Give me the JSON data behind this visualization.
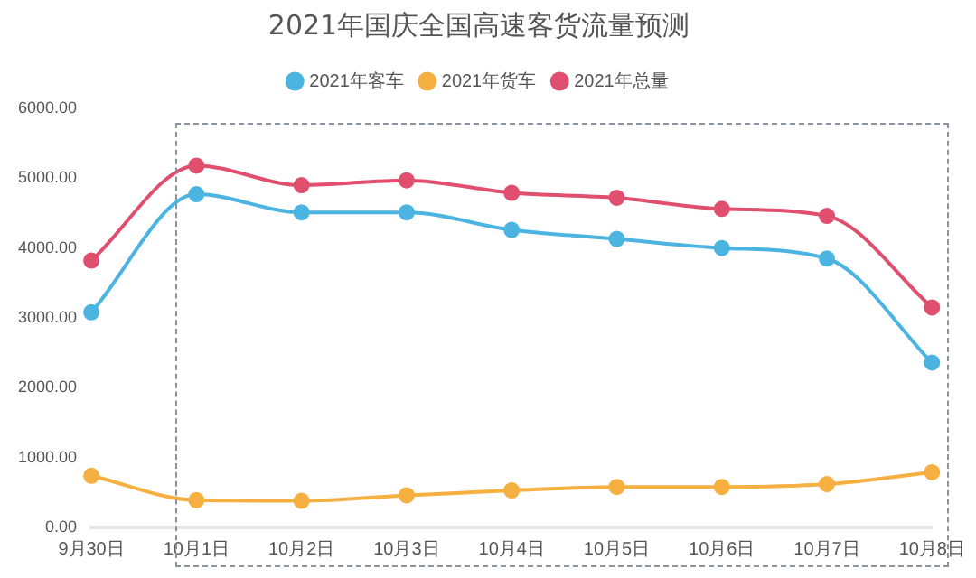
{
  "chart_data": {
    "type": "line",
    "title": "2021年国庆全国高速客货流量预测",
    "categories": [
      "9月30日",
      "10月1日",
      "10月2日",
      "10月3日",
      "10月4日",
      "10月5日",
      "10月6日",
      "10月7日",
      "10月8日"
    ],
    "series": [
      {
        "name": "2021年客车",
        "color": "#4bb4e0",
        "values": [
          3080,
          4770,
          4510,
          4510,
          4260,
          4130,
          4000,
          3850,
          2360
        ]
      },
      {
        "name": "2021年货车",
        "color": "#f5b041",
        "values": [
          740,
          390,
          380,
          460,
          530,
          580,
          580,
          620,
          790
        ]
      },
      {
        "name": "2021年总量",
        "color": "#e0506e",
        "values": [
          3820,
          5180,
          4900,
          4970,
          4790,
          4720,
          4560,
          4460,
          3150
        ]
      }
    ],
    "ylim": [
      0,
      6000
    ],
    "yticks": [
      {
        "value": 0,
        "label": "0.00"
      },
      {
        "value": 1000,
        "label": "1000.00"
      },
      {
        "value": 2000,
        "label": "2000.00"
      },
      {
        "value": 3000,
        "label": "3000.00"
      },
      {
        "value": 4000,
        "label": "4000.00"
      },
      {
        "value": 5000,
        "label": "5000.00"
      },
      {
        "value": 6000,
        "label": "6000.00"
      }
    ],
    "grid": false,
    "legend": "top",
    "marker": "circle",
    "line_style": "solid"
  }
}
